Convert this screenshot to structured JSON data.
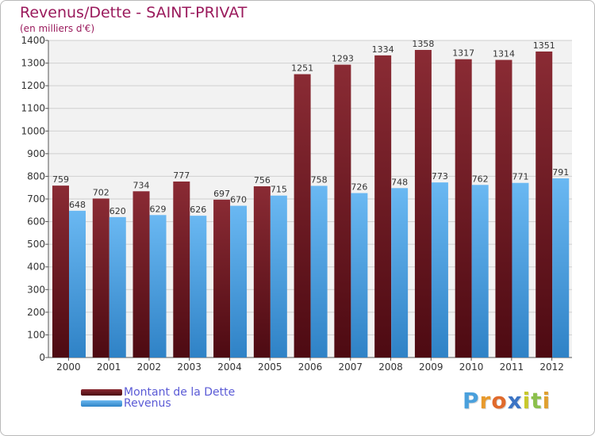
{
  "chart_data": {
    "type": "bar",
    "title": "Revenus/Dette - SAINT-PRIVAT",
    "subtitle": "(en milliers d'€)",
    "categories": [
      "2000",
      "2001",
      "2002",
      "2003",
      "2004",
      "2005",
      "2006",
      "2007",
      "2008",
      "2009",
      "2010",
      "2011",
      "2012"
    ],
    "series": [
      {
        "name": "Montant de la Dette",
        "color": "#6b1a22",
        "values": [
          759,
          702,
          734,
          777,
          697,
          756,
          1251,
          1293,
          1334,
          1358,
          1317,
          1314,
          1351
        ]
      },
      {
        "name": "Revenus",
        "color": "#4a9fe0",
        "values": [
          648,
          620,
          629,
          626,
          670,
          715,
          758,
          726,
          748,
          773,
          762,
          771,
          791
        ]
      }
    ],
    "ylim": [
      0,
      1400
    ],
    "yticks": [
      0,
      100,
      200,
      300,
      400,
      500,
      600,
      700,
      800,
      900,
      1000,
      1100,
      1200,
      1300,
      1400
    ],
    "grid": true,
    "legend_position": "bottom-left",
    "xlabel": "",
    "ylabel": ""
  },
  "logo": {
    "letters": [
      "P",
      "r",
      "o",
      "x",
      "i",
      "t",
      "i"
    ],
    "colors": [
      "#4aa0dc",
      "#e89a2c",
      "#e06a2c",
      "#3b74c4",
      "#c8c82c",
      "#8cc04c",
      "#e0a030"
    ]
  }
}
